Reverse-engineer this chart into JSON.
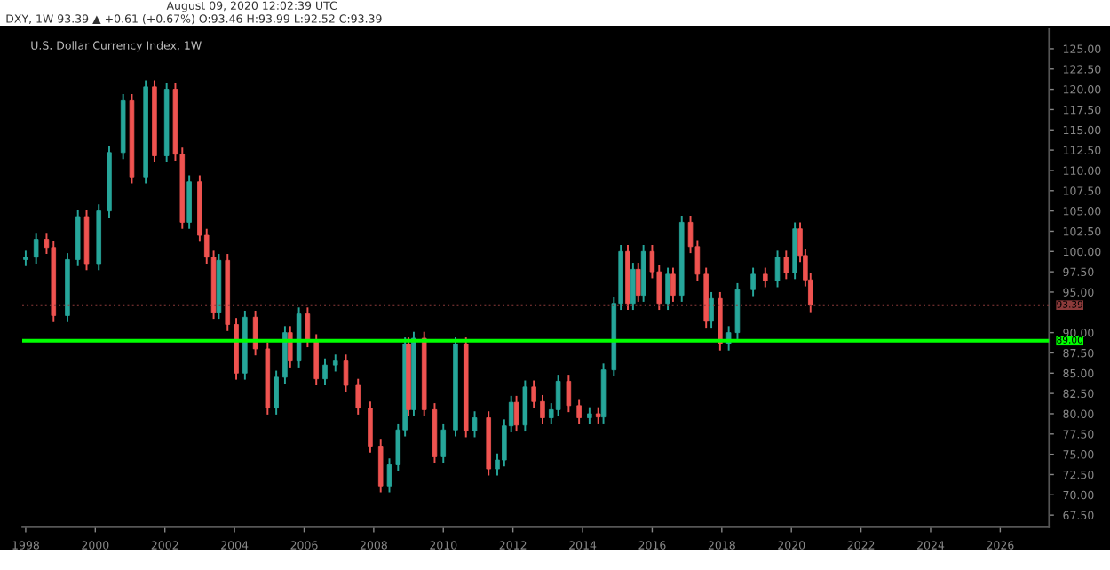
{
  "chart_data": {
    "type": "candlestick",
    "title": "U.S. Dollar Currency Index, 1W",
    "annotations": [
      "August 09, 2020 12:02:39 UTC",
      "DXY, 1W 93.39 ▲ +0.61 (+0.67%) O:93.46 H:93.99 L:92.52 C:93.39"
    ],
    "x": [
      1998.0,
      1998.3,
      1998.6,
      1998.8,
      1999.2,
      1999.5,
      1999.75,
      2000.1,
      2000.4,
      2000.8,
      2001.05,
      2001.45,
      2001.7,
      2002.05,
      2002.3,
      2002.5,
      2002.7,
      2003.0,
      2003.2,
      2003.4,
      2003.55,
      2003.8,
      2004.05,
      2004.3,
      2004.6,
      2004.95,
      2005.2,
      2005.45,
      2005.6,
      2005.85,
      2006.1,
      2006.35,
      2006.6,
      2006.9,
      2007.2,
      2007.55,
      2007.9,
      2008.2,
      2008.45,
      2008.7,
      2008.9,
      2009.0,
      2009.15,
      2009.45,
      2009.75,
      2010.0,
      2010.35,
      2010.65,
      2010.9,
      2011.3,
      2011.55,
      2011.75,
      2011.95,
      2012.1,
      2012.35,
      2012.6,
      2012.85,
      2013.1,
      2013.3,
      2013.6,
      2013.9,
      2014.2,
      2014.45,
      2014.6,
      2014.9,
      2015.1,
      2015.3,
      2015.45,
      2015.6,
      2015.75,
      2016.0,
      2016.2,
      2016.45,
      2016.6,
      2016.85,
      2017.1,
      2017.3,
      2017.55,
      2017.7,
      2017.95,
      2018.2,
      2018.45,
      2018.9,
      2019.25,
      2019.6,
      2019.85,
      2020.1,
      2020.25,
      2020.4,
      2020.55
    ],
    "ohlc": [
      [
        99.0,
        100.1,
        98.2,
        99.3
      ],
      [
        99.3,
        102.3,
        98.5,
        101.5
      ],
      [
        101.5,
        102.3,
        99.7,
        100.5
      ],
      [
        100.5,
        101.3,
        91.3,
        92.1
      ],
      [
        92.1,
        99.8,
        91.3,
        99.0
      ],
      [
        99.0,
        105.1,
        98.2,
        104.3
      ],
      [
        104.3,
        105.1,
        97.7,
        98.5
      ],
      [
        98.5,
        105.8,
        97.7,
        105.0
      ],
      [
        105.0,
        113.0,
        104.2,
        112.2
      ],
      [
        112.2,
        119.4,
        111.4,
        118.6
      ],
      [
        118.6,
        119.4,
        108.4,
        109.2
      ],
      [
        109.2,
        121.1,
        108.4,
        120.3
      ],
      [
        120.3,
        121.1,
        111.0,
        111.8
      ],
      [
        111.8,
        120.8,
        111.0,
        120.0
      ],
      [
        120.0,
        120.8,
        111.2,
        112.0
      ],
      [
        112.0,
        112.8,
        102.8,
        103.6
      ],
      [
        103.6,
        109.4,
        102.8,
        108.6
      ],
      [
        108.6,
        109.4,
        101.2,
        102.0
      ],
      [
        102.0,
        102.8,
        98.5,
        99.3
      ],
      [
        99.3,
        100.1,
        91.7,
        92.5
      ],
      [
        92.5,
        99.7,
        91.7,
        98.9
      ],
      [
        98.9,
        99.7,
        90.2,
        91.0
      ],
      [
        91.0,
        91.8,
        84.2,
        85.0
      ],
      [
        85.0,
        92.7,
        84.2,
        91.9
      ],
      [
        91.9,
        92.7,
        87.2,
        88.0
      ],
      [
        88.0,
        88.8,
        79.9,
        80.7
      ],
      [
        80.7,
        85.3,
        79.9,
        84.5
      ],
      [
        84.5,
        90.8,
        83.7,
        90.0
      ],
      [
        90.0,
        90.8,
        85.7,
        86.5
      ],
      [
        86.5,
        93.1,
        85.7,
        92.3
      ],
      [
        92.3,
        93.1,
        88.2,
        89.0
      ],
      [
        89.0,
        89.8,
        83.5,
        84.3
      ],
      [
        84.3,
        86.8,
        83.5,
        86.0
      ],
      [
        86.0,
        87.3,
        85.2,
        86.5
      ],
      [
        86.5,
        87.3,
        82.7,
        83.5
      ],
      [
        83.5,
        84.3,
        79.9,
        80.7
      ],
      [
        80.7,
        81.5,
        75.2,
        76.0
      ],
      [
        76.0,
        76.8,
        70.3,
        71.1
      ],
      [
        71.1,
        74.5,
        70.3,
        73.7
      ],
      [
        73.7,
        78.8,
        72.9,
        78.0
      ],
      [
        78.0,
        89.4,
        77.2,
        88.6
      ],
      [
        88.6,
        89.4,
        79.7,
        80.5
      ],
      [
        80.5,
        90.1,
        79.7,
        89.3
      ],
      [
        89.3,
        90.1,
        79.7,
        80.5
      ],
      [
        80.5,
        81.3,
        73.9,
        74.7
      ],
      [
        74.7,
        78.8,
        73.9,
        78.0
      ],
      [
        78.0,
        89.4,
        77.2,
        88.6
      ],
      [
        88.6,
        89.4,
        77.1,
        77.9
      ],
      [
        77.9,
        80.3,
        77.1,
        79.5
      ],
      [
        79.5,
        80.3,
        72.4,
        73.2
      ],
      [
        73.2,
        75.1,
        72.4,
        74.3
      ],
      [
        74.3,
        79.3,
        73.5,
        78.5
      ],
      [
        78.5,
        82.2,
        77.7,
        81.4
      ],
      [
        81.4,
        82.2,
        77.8,
        78.6
      ],
      [
        78.6,
        84.1,
        77.8,
        83.3
      ],
      [
        83.3,
        84.1,
        80.7,
        81.5
      ],
      [
        81.5,
        82.3,
        78.7,
        79.5
      ],
      [
        79.5,
        81.3,
        78.7,
        80.5
      ],
      [
        80.5,
        84.8,
        79.7,
        84.0
      ],
      [
        84.0,
        84.8,
        80.2,
        81.0
      ],
      [
        81.0,
        81.8,
        78.7,
        79.5
      ],
      [
        79.5,
        80.8,
        78.7,
        80.0
      ],
      [
        80.0,
        80.8,
        78.8,
        79.6
      ],
      [
        79.6,
        86.2,
        78.8,
        85.4
      ],
      [
        85.4,
        94.4,
        84.6,
        93.6
      ],
      [
        93.6,
        100.8,
        92.8,
        100.0
      ],
      [
        100.0,
        100.8,
        92.8,
        93.6
      ],
      [
        93.6,
        98.6,
        92.8,
        97.8
      ],
      [
        97.8,
        98.6,
        93.8,
        94.6
      ],
      [
        94.6,
        100.8,
        93.8,
        100.0
      ],
      [
        100.0,
        100.8,
        96.7,
        97.5
      ],
      [
        97.5,
        98.3,
        92.8,
        93.6
      ],
      [
        93.6,
        98.0,
        92.8,
        97.2
      ],
      [
        97.2,
        98.0,
        93.8,
        94.6
      ],
      [
        94.6,
        104.4,
        93.8,
        103.6
      ],
      [
        103.6,
        104.4,
        99.8,
        100.6
      ],
      [
        100.6,
        101.4,
        96.4,
        97.2
      ],
      [
        97.2,
        98.0,
        90.6,
        91.4
      ],
      [
        91.4,
        95.0,
        90.6,
        94.2
      ],
      [
        94.2,
        95.0,
        87.8,
        88.6
      ],
      [
        88.6,
        90.8,
        87.8,
        90.0
      ],
      [
        90.0,
        96.1,
        89.2,
        95.3
      ],
      [
        95.3,
        98.0,
        94.5,
        97.2
      ],
      [
        97.2,
        98.0,
        95.6,
        96.4
      ],
      [
        96.4,
        100.1,
        95.6,
        99.3
      ],
      [
        99.3,
        100.1,
        96.6,
        97.4
      ],
      [
        97.4,
        103.6,
        96.6,
        102.8
      ],
      [
        102.8,
        103.6,
        98.7,
        99.5
      ],
      [
        99.5,
        100.3,
        95.7,
        96.5
      ],
      [
        96.5,
        97.3,
        92.52,
        93.39
      ]
    ],
    "colors": [
      "#26a69a",
      "#26a69a",
      "#ef5350",
      "#ef5350",
      "#26a69a",
      "#26a69a",
      "#ef5350",
      "#26a69a",
      "#26a69a",
      "#26a69a",
      "#ef5350",
      "#26a69a",
      "#ef5350",
      "#26a69a",
      "#ef5350",
      "#ef5350",
      "#26a69a",
      "#ef5350",
      "#ef5350",
      "#ef5350",
      "#26a69a",
      "#ef5350",
      "#ef5350",
      "#26a69a",
      "#ef5350",
      "#ef5350",
      "#26a69a",
      "#26a69a",
      "#ef5350",
      "#26a69a",
      "#ef5350",
      "#ef5350",
      "#26a69a",
      "#26a69a",
      "#ef5350",
      "#ef5350",
      "#ef5350",
      "#ef5350",
      "#26a69a",
      "#26a69a",
      "#26a69a",
      "#ef5350",
      "#26a69a",
      "#ef5350",
      "#ef5350",
      "#26a69a",
      "#26a69a",
      "#ef5350",
      "#26a69a",
      "#ef5350",
      "#26a69a",
      "#26a69a",
      "#26a69a",
      "#ef5350",
      "#26a69a",
      "#ef5350",
      "#ef5350",
      "#26a69a",
      "#26a69a",
      "#ef5350",
      "#ef5350",
      "#26a69a",
      "#ef5350",
      "#26a69a",
      "#26a69a",
      "#26a69a",
      "#ef5350",
      "#26a69a",
      "#ef5350",
      "#26a69a",
      "#ef5350",
      "#ef5350",
      "#26a69a",
      "#ef5350",
      "#26a69a",
      "#ef5350",
      "#ef5350",
      "#ef5350",
      "#26a69a",
      "#ef5350",
      "#26a69a",
      "#26a69a",
      "#26a69a",
      "#ef5350",
      "#26a69a",
      "#ef5350",
      "#26a69a",
      "#ef5350",
      "#ef5350",
      "#ef5350"
    ],
    "xlim": [
      1997.9,
      2027.4
    ],
    "xticks": [
      1998,
      2000,
      2002,
      2004,
      2006,
      2008,
      2010,
      2012,
      2014,
      2016,
      2018,
      2020,
      2022,
      2024,
      2026
    ],
    "ylim": [
      66.0,
      127.5
    ],
    "yticks": [
      {
        "value": 67.5,
        "label": "67.50"
      },
      {
        "value": 70,
        "label": "70.00"
      },
      {
        "value": 72.5,
        "label": "72.50"
      },
      {
        "value": 75,
        "label": "75.00"
      },
      {
        "value": 77.5,
        "label": "77.50"
      },
      {
        "value": 80,
        "label": "80.00"
      },
      {
        "value": 82.5,
        "label": "82.50"
      },
      {
        "value": 85,
        "label": "85.00"
      },
      {
        "value": 87.5,
        "label": "87.50"
      },
      {
        "value": 90,
        "label": "90.00"
      },
      {
        "value": 95,
        "label": "95.00"
      },
      {
        "value": 97.5,
        "label": "97.50"
      },
      {
        "value": 100,
        "label": "100.00"
      },
      {
        "value": 102.5,
        "label": "102.50"
      },
      {
        "value": 105,
        "label": "105.00"
      },
      {
        "value": 107.5,
        "label": "107.50"
      },
      {
        "value": 110,
        "label": "110.00"
      },
      {
        "value": 112.5,
        "label": "112.50"
      },
      {
        "value": 115,
        "label": "115.00"
      },
      {
        "value": 117.5,
        "label": "117.50"
      },
      {
        "value": 120,
        "label": "120.00"
      },
      {
        "value": 122.5,
        "label": "122.50"
      },
      {
        "value": 125,
        "label": "125.00"
      }
    ],
    "ref_lines": [
      {
        "axis": "y",
        "value": 93.39,
        "label": "93.39",
        "color": "#8b3a3a",
        "line_style": "dotted"
      },
      {
        "axis": "y",
        "value": 89.0,
        "label": "89.00",
        "color": "#00ff00",
        "line_style": "solid"
      }
    ],
    "grid": false,
    "legend": false
  }
}
